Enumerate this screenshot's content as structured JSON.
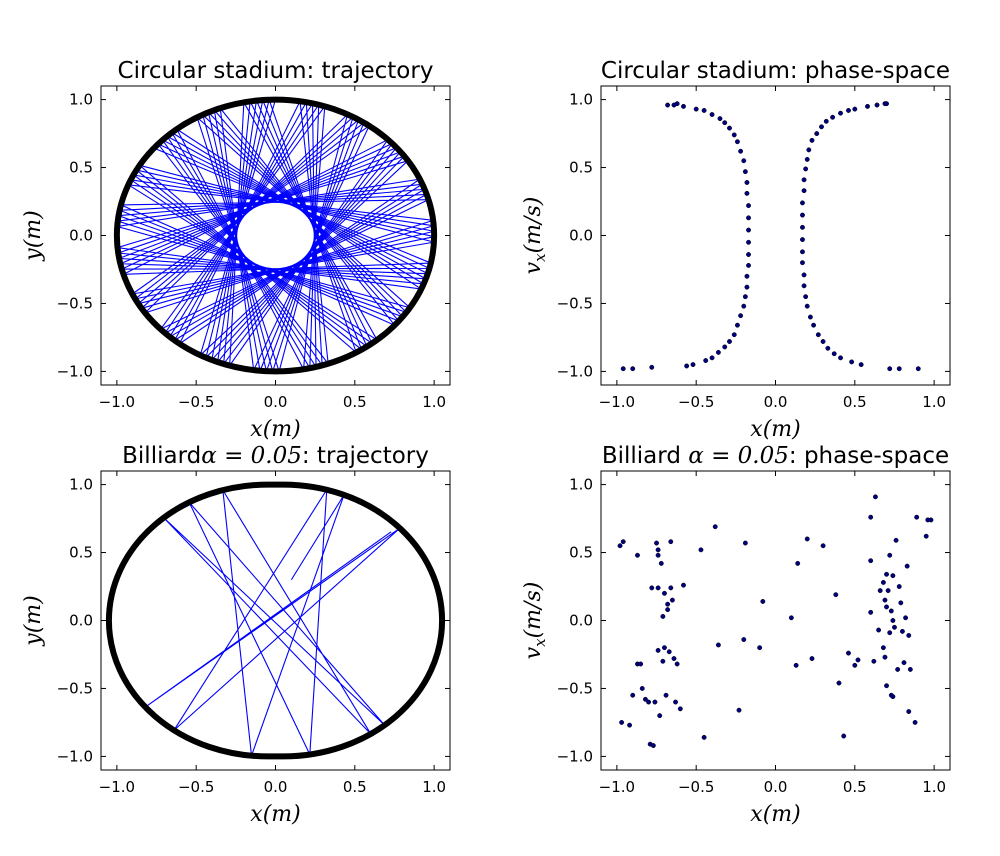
{
  "chart_data": [
    {
      "type": "line",
      "title": "Circular stadium: trajectory",
      "xlabel": "x(m)",
      "ylabel": "y(m)",
      "xlim": [
        -1.1,
        1.1
      ],
      "ylim": [
        -1.1,
        1.1
      ],
      "xticks": [
        "−1.0",
        "−0.5",
        "0.0",
        "0.5",
        "1.0"
      ],
      "yticks": [
        "−1.0",
        "−0.5",
        "0.0",
        "0.5",
        "1.0"
      ],
      "boundary": {
        "shape": "circle",
        "radius": 1.0,
        "alpha": 0.0,
        "color": "#000000"
      },
      "series": [
        {
          "color": "#0000ff",
          "start_angle_deg": 90,
          "step_angle_deg": 151.7,
          "bounces": 100
        }
      ]
    },
    {
      "type": "scatter",
      "title": "Circular stadium: phase-space",
      "xlabel": "x(m)",
      "ylabel": "v_x(m/s)",
      "xlim": [
        -1.1,
        1.1
      ],
      "ylim": [
        -1.1,
        1.1
      ],
      "xticks": [
        "−1.0",
        "−0.5",
        "0.0",
        "0.5",
        "1.0"
      ],
      "yticks": [
        "−1.0",
        "−0.5",
        "0.0",
        "0.5",
        "1.0"
      ],
      "point_color": "#000080",
      "points": [
        [
          -0.96,
          -0.98
        ],
        [
          -0.9,
          -0.98
        ],
        [
          -0.78,
          -0.97
        ],
        [
          -0.56,
          -0.96
        ],
        [
          -0.52,
          -0.95
        ],
        [
          -0.44,
          -0.92
        ],
        [
          -0.4,
          -0.9
        ],
        [
          -0.36,
          -0.86
        ],
        [
          -0.32,
          -0.82
        ],
        [
          -0.29,
          -0.78
        ],
        [
          -0.26,
          -0.73
        ],
        [
          -0.24,
          -0.66
        ],
        [
          -0.22,
          -0.59
        ],
        [
          -0.2,
          -0.52
        ],
        [
          -0.19,
          -0.45
        ],
        [
          -0.18,
          -0.38
        ],
        [
          -0.18,
          -0.3
        ],
        [
          -0.17,
          -0.22
        ],
        [
          -0.17,
          -0.14
        ],
        [
          -0.17,
          -0.05
        ],
        [
          -0.17,
          0.04
        ],
        [
          -0.17,
          0.13
        ],
        [
          -0.17,
          0.22
        ],
        [
          -0.18,
          0.31
        ],
        [
          -0.18,
          0.39
        ],
        [
          -0.19,
          0.47
        ],
        [
          -0.2,
          0.55
        ],
        [
          -0.22,
          0.62
        ],
        [
          -0.24,
          0.69
        ],
        [
          -0.26,
          0.74
        ],
        [
          -0.29,
          0.79
        ],
        [
          -0.32,
          0.83
        ],
        [
          -0.35,
          0.86
        ],
        [
          -0.4,
          0.89
        ],
        [
          -0.45,
          0.92
        ],
        [
          -0.5,
          0.93
        ],
        [
          -0.58,
          0.95
        ],
        [
          -0.64,
          0.96
        ],
        [
          -0.68,
          0.96
        ],
        [
          -0.62,
          0.97
        ],
        [
          0.17,
          -0.2
        ],
        [
          0.17,
          -0.12
        ],
        [
          0.17,
          -0.03
        ],
        [
          0.17,
          0.06
        ],
        [
          0.17,
          0.15
        ],
        [
          0.17,
          0.24
        ],
        [
          0.18,
          0.33
        ],
        [
          0.18,
          0.41
        ],
        [
          0.19,
          0.49
        ],
        [
          0.2,
          0.56
        ],
        [
          0.21,
          0.63
        ],
        [
          0.23,
          0.7
        ],
        [
          0.26,
          0.75
        ],
        [
          0.29,
          0.8
        ],
        [
          0.32,
          0.84
        ],
        [
          0.36,
          0.87
        ],
        [
          0.41,
          0.9
        ],
        [
          0.46,
          0.92
        ],
        [
          0.5,
          0.93
        ],
        [
          0.58,
          0.95
        ],
        [
          0.64,
          0.96
        ],
        [
          0.69,
          0.97
        ],
        [
          0.7,
          0.97
        ],
        [
          0.18,
          -0.29
        ],
        [
          0.18,
          -0.37
        ],
        [
          0.19,
          -0.45
        ],
        [
          0.2,
          -0.52
        ],
        [
          0.22,
          -0.6
        ],
        [
          0.24,
          -0.66
        ],
        [
          0.27,
          -0.73
        ],
        [
          0.3,
          -0.78
        ],
        [
          0.33,
          -0.83
        ],
        [
          0.37,
          -0.87
        ],
        [
          0.41,
          -0.9
        ],
        [
          0.48,
          -0.93
        ],
        [
          0.54,
          -0.95
        ],
        [
          0.72,
          -0.98
        ],
        [
          0.78,
          -0.98
        ],
        [
          0.9,
          -0.98
        ]
      ]
    },
    {
      "type": "line",
      "title": "Billiard α = 0.05: trajectory",
      "title_prefix": "Billiard",
      "title_math": "α = 0.05",
      "title_suffix": ": trajectory",
      "xlabel": "x(m)",
      "ylabel": "y(m)",
      "xlim": [
        -1.1,
        1.1
      ],
      "ylim": [
        -1.1,
        1.1
      ],
      "xticks": [
        "−1.0",
        "−0.5",
        "0.0",
        "0.5",
        "1.0"
      ],
      "yticks": [
        "−1.0",
        "−0.5",
        "0.0",
        "0.5",
        "1.0"
      ],
      "boundary": {
        "shape": "stadium",
        "radius": 1.0,
        "alpha": 0.05,
        "color": "#000000"
      },
      "series": [
        {
          "color": "#0000ff",
          "start": [
            0.1,
            0.3
          ],
          "direction_deg": 62,
          "bounces": 140
        }
      ]
    },
    {
      "type": "scatter",
      "title": "Billiard α = 0.05: phase-space",
      "title_prefix": "Billiard ",
      "title_math": "α = 0.05",
      "title_suffix": ": phase-space",
      "xlabel": "x(m)",
      "ylabel": "v_x(m/s)",
      "xlim": [
        -1.1,
        1.1
      ],
      "ylim": [
        -1.1,
        1.1
      ],
      "xticks": [
        "−1.0",
        "−0.5",
        "0.0",
        "0.5",
        "1.0"
      ],
      "yticks": [
        "−1.0",
        "−0.5",
        "0.0",
        "0.5",
        "1.0"
      ],
      "point_color": "#000080",
      "points": [
        [
          -0.98,
          0.55
        ],
        [
          -0.96,
          0.58
        ],
        [
          -0.97,
          -0.75
        ],
        [
          -0.92,
          -0.77
        ],
        [
          -0.9,
          -0.55
        ],
        [
          -0.87,
          0.48
        ],
        [
          -0.87,
          -0.32
        ],
        [
          -0.85,
          -0.32
        ],
        [
          -0.84,
          -0.5
        ],
        [
          -0.82,
          -0.58
        ],
        [
          -0.8,
          -0.6
        ],
        [
          -0.78,
          0.24
        ],
        [
          -0.79,
          -0.91
        ],
        [
          -0.77,
          -0.92
        ],
        [
          -0.76,
          -0.6
        ],
        [
          -0.75,
          0.57
        ],
        [
          -0.74,
          0.52
        ],
        [
          -0.74,
          0.48
        ],
        [
          -0.74,
          0.24
        ],
        [
          -0.74,
          -0.22
        ],
        [
          -0.73,
          -0.7
        ],
        [
          -0.72,
          0.42
        ],
        [
          -0.71,
          0.03
        ],
        [
          -0.71,
          -0.3
        ],
        [
          -0.7,
          0.2
        ],
        [
          -0.7,
          -0.2
        ],
        [
          -0.69,
          -0.55
        ],
        [
          -0.68,
          0.12
        ],
        [
          -0.68,
          0.08
        ],
        [
          -0.67,
          -0.23
        ],
        [
          -0.66,
          0.58
        ],
        [
          -0.66,
          0.24
        ],
        [
          -0.65,
          0.15
        ],
        [
          -0.64,
          -0.28
        ],
        [
          -0.63,
          -0.6
        ],
        [
          -0.62,
          -0.32
        ],
        [
          -0.6,
          -0.65
        ],
        [
          -0.58,
          0.26
        ],
        [
          -0.47,
          0.52
        ],
        [
          -0.45,
          -0.86
        ],
        [
          -0.38,
          0.69
        ],
        [
          -0.36,
          -0.18
        ],
        [
          -0.23,
          -0.66
        ],
        [
          -0.2,
          -0.14
        ],
        [
          -0.19,
          0.57
        ],
        [
          -0.1,
          -0.2
        ],
        [
          -0.08,
          0.14
        ],
        [
          0.1,
          0.02
        ],
        [
          0.13,
          -0.33
        ],
        [
          0.14,
          0.42
        ],
        [
          0.2,
          0.6
        ],
        [
          0.23,
          -0.28
        ],
        [
          0.3,
          0.55
        ],
        [
          0.38,
          0.19
        ],
        [
          0.4,
          -0.46
        ],
        [
          0.43,
          -0.85
        ],
        [
          0.46,
          -0.24
        ],
        [
          0.5,
          -0.33
        ],
        [
          0.52,
          -0.29
        ],
        [
          0.6,
          0.06
        ],
        [
          0.6,
          0.44
        ],
        [
          0.6,
          0.76
        ],
        [
          0.62,
          -0.3
        ],
        [
          0.63,
          0.91
        ],
        [
          0.65,
          -0.07
        ],
        [
          0.66,
          0.22
        ],
        [
          0.68,
          0.28
        ],
        [
          0.68,
          -0.2
        ],
        [
          0.69,
          0.15
        ],
        [
          0.69,
          -0.27
        ],
        [
          0.7,
          0.34
        ],
        [
          0.7,
          0.1
        ],
        [
          0.7,
          -0.48
        ],
        [
          0.71,
          0.22
        ],
        [
          0.72,
          0.48
        ],
        [
          0.72,
          -0.09
        ],
        [
          0.73,
          0.07
        ],
        [
          0.73,
          -0.55
        ],
        [
          0.74,
          0.33
        ],
        [
          0.74,
          0.0
        ],
        [
          0.74,
          -0.56
        ],
        [
          0.75,
          -0.05
        ],
        [
          0.76,
          0.59
        ],
        [
          0.77,
          -0.36
        ],
        [
          0.78,
          0.25
        ],
        [
          0.79,
          0.13
        ],
        [
          0.8,
          -0.08
        ],
        [
          0.81,
          -0.31
        ],
        [
          0.82,
          0.02
        ],
        [
          0.83,
          0.4
        ],
        [
          0.84,
          -0.11
        ],
        [
          0.84,
          -0.67
        ],
        [
          0.85,
          -0.36
        ],
        [
          0.88,
          -0.75
        ],
        [
          0.89,
          0.76
        ],
        [
          0.95,
          0.62
        ],
        [
          0.96,
          0.74
        ],
        [
          0.98,
          0.74
        ]
      ]
    }
  ]
}
